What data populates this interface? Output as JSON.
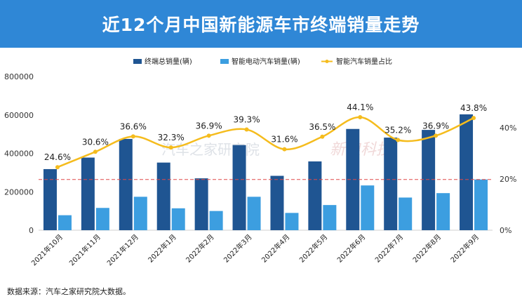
{
  "header": {
    "title": "近12个月中国新能源车市终端销量走势"
  },
  "footnote": "数据来源：汽车之家研究院大数据。",
  "watermarks": [
    "汽车之家研究院",
    "新浪科技"
  ],
  "colors": {
    "header_bg": "#2f87d6",
    "total_bar": "#1f5592",
    "smart_bar": "#3c9ee0",
    "ratio_line": "#f5bc1d",
    "ref_line": "#e04848"
  },
  "chart_data": {
    "type": "bar+line",
    "categories": [
      "2021年10月",
      "2021年11月",
      "2021年12月",
      "2022年1月",
      "2022年2月",
      "2022年3月",
      "2022年4月",
      "2022年5月",
      "2022年6月",
      "2022年7月",
      "2022年8月",
      "2022年9月"
    ],
    "series": [
      {
        "name": "终端总销量(辆)",
        "type": "bar",
        "axis": "left",
        "values": [
          318000,
          378000,
          475000,
          352000,
          270000,
          443000,
          283000,
          358000,
          527000,
          482000,
          522000,
          603000
        ]
      },
      {
        "name": "智能电动汽车销量(辆)",
        "type": "bar",
        "axis": "left",
        "values": [
          78000,
          116000,
          174000,
          114000,
          100000,
          174000,
          90000,
          131000,
          233000,
          170000,
          193000,
          264000
        ]
      },
      {
        "name": "智能汽车销量占比",
        "type": "line",
        "axis": "right",
        "values": [
          24.6,
          30.6,
          36.6,
          32.3,
          36.9,
          39.3,
          31.6,
          36.5,
          44.1,
          35.2,
          36.9,
          43.8
        ],
        "labels": [
          "24.6%",
          "30.6%",
          "36.6%",
          "32.3%",
          "36.9%",
          "39.3%",
          "31.6%",
          "36.5%",
          "44.1%",
          "35.2%",
          "36.9%",
          "43.8%"
        ]
      }
    ],
    "y_left": {
      "min": 0,
      "max": 800000,
      "ticks": [
        "0",
        "200000",
        "400000",
        "600000",
        "800000"
      ]
    },
    "y_right": {
      "min": 0,
      "max": 60,
      "ticks": [
        "0%",
        "20%",
        "40%"
      ],
      "tick_values": [
        0,
        20,
        40
      ]
    },
    "reference_line": {
      "value": 264000,
      "style": "dashed"
    },
    "legend_position": "top"
  }
}
